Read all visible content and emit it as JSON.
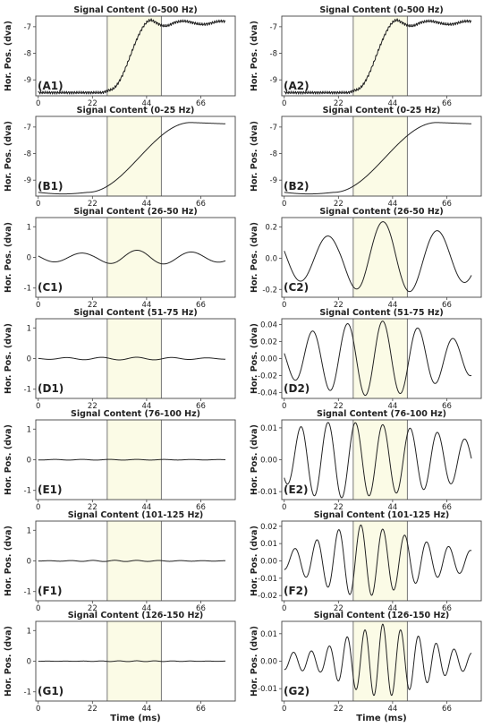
{
  "figure": {
    "x_label": "Time (ms)",
    "y_label": "Hor. Pos. (dva)",
    "shade_color": "#fbfbe6",
    "line_color": "#222222",
    "shaded_interval_ms": [
      28,
      50
    ]
  },
  "chart_data": [
    {
      "id": "A1",
      "type": "line",
      "title": "Signal Content (0-500 Hz)",
      "panel_label": "(A1)",
      "signal": "full",
      "ylim": [
        -9.6,
        -6.6
      ],
      "yticks": [
        -9,
        -8,
        -7
      ],
      "ytick_labels": [
        "-9",
        "-8",
        "-7"
      ],
      "xlim": [
        -1,
        80
      ],
      "xticks": [
        0,
        22,
        44,
        66
      ],
      "xtick_labels": [
        "0",
        "22",
        "44",
        "66"
      ],
      "x_axis_label": ""
    },
    {
      "id": "A2",
      "type": "line",
      "title": "Signal Content (0-500 Hz)",
      "panel_label": "(A2)",
      "signal": "full",
      "ylim": [
        -9.6,
        -6.6
      ],
      "yticks": [
        -9,
        -8,
        -7
      ],
      "ytick_labels": [
        "-9",
        "-8",
        "-7"
      ],
      "xlim": [
        -1,
        80
      ],
      "xticks": [
        0,
        22,
        44,
        66
      ],
      "xtick_labels": [
        "0",
        "22",
        "44",
        "66"
      ],
      "x_axis_label": ""
    },
    {
      "id": "B1",
      "type": "line",
      "title": "Signal Content (0-25 Hz)",
      "panel_label": "(B1)",
      "signal": "smooth",
      "ylim": [
        -9.6,
        -6.6
      ],
      "yticks": [
        -9,
        -8,
        -7
      ],
      "ytick_labels": [
        "-9",
        "-8",
        "-7"
      ],
      "xlim": [
        -1,
        80
      ],
      "xticks": [
        0,
        22,
        44,
        66
      ],
      "xtick_labels": [
        "0",
        "22",
        "44",
        "66"
      ],
      "x_axis_label": ""
    },
    {
      "id": "B2",
      "type": "line",
      "title": "Signal Content (0-25 Hz)",
      "panel_label": "(B2)",
      "signal": "smooth",
      "ylim": [
        -9.6,
        -6.6
      ],
      "yticks": [
        -9,
        -8,
        -7
      ],
      "ytick_labels": [
        "-9",
        "-8",
        "-7"
      ],
      "xlim": [
        -1,
        80
      ],
      "xticks": [
        0,
        22,
        44,
        66
      ],
      "xtick_labels": [
        "0",
        "22",
        "44",
        "66"
      ],
      "x_axis_label": ""
    },
    {
      "id": "C1",
      "type": "line",
      "title": "Signal Content (26-50 Hz)",
      "panel_label": "(C1)",
      "signal": "wave",
      "freq_khz": 0.045,
      "envelope": [
        [
          0,
          0.15
        ],
        [
          22,
          0.14
        ],
        [
          32,
          0.22
        ],
        [
          44,
          0.24
        ],
        [
          60,
          0.18
        ],
        [
          76,
          0.15
        ]
      ],
      "ylim": [
        -1.3,
        1.3
      ],
      "yticks": [
        -1,
        0,
        1
      ],
      "ytick_labels": [
        "-1",
        "0",
        "1"
      ],
      "xlim": [
        -1,
        80
      ],
      "xticks": [
        0,
        22,
        44,
        66
      ],
      "xtick_labels": [
        "0",
        "22",
        "44",
        "66"
      ],
      "x_axis_label": ""
    },
    {
      "id": "C2",
      "type": "line",
      "title": "Signal Content (26-50 Hz)",
      "panel_label": "(C2)",
      "signal": "wave",
      "freq_khz": 0.045,
      "envelope": [
        [
          0,
          0.15
        ],
        [
          22,
          0.14
        ],
        [
          32,
          0.22
        ],
        [
          44,
          0.24
        ],
        [
          60,
          0.18
        ],
        [
          76,
          0.15
        ]
      ],
      "ylim": [
        -0.25,
        0.26
      ],
      "yticks": [
        -0.2,
        0,
        0.2
      ],
      "ytick_labels": [
        "-0.2",
        "0.0",
        "0.2"
      ],
      "xlim": [
        -1,
        80
      ],
      "xticks": [
        0,
        22,
        44,
        66
      ],
      "xtick_labels": [
        "0",
        "22",
        "44",
        "66"
      ],
      "x_axis_label": ""
    },
    {
      "id": "D1",
      "type": "line",
      "title": "Signal Content (51-75 Hz)",
      "panel_label": "(D1)",
      "signal": "wave",
      "freq_khz": 0.07,
      "envelope": [
        [
          0,
          0.02
        ],
        [
          8,
          0.03
        ],
        [
          22,
          0.04
        ],
        [
          38,
          0.045
        ],
        [
          50,
          0.04
        ],
        [
          66,
          0.025
        ],
        [
          76,
          0.02
        ]
      ],
      "ylim": [
        -1.3,
        1.3
      ],
      "yticks": [
        -1,
        0,
        1
      ],
      "ytick_labels": [
        "-1",
        "0",
        "1"
      ],
      "xlim": [
        -1,
        80
      ],
      "xticks": [
        0,
        22,
        44,
        66
      ],
      "xtick_labels": [
        "0",
        "22",
        "44",
        "66"
      ],
      "x_axis_label": ""
    },
    {
      "id": "D2",
      "type": "line",
      "title": "Signal Content (51-75 Hz)",
      "panel_label": "(D2)",
      "signal": "wave",
      "freq_khz": 0.07,
      "envelope": [
        [
          0,
          0.02
        ],
        [
          8,
          0.03
        ],
        [
          22,
          0.04
        ],
        [
          38,
          0.045
        ],
        [
          50,
          0.04
        ],
        [
          66,
          0.025
        ],
        [
          76,
          0.02
        ]
      ],
      "ylim": [
        -0.047,
        0.047
      ],
      "yticks": [
        -0.04,
        -0.02,
        0,
        0.02,
        0.04
      ],
      "ytick_labels": [
        "-0.04",
        "-0.02",
        "0.00",
        "0.02",
        "0.04"
      ],
      "xlim": [
        -1,
        80
      ],
      "xticks": [
        0,
        22,
        44,
        66
      ],
      "xtick_labels": [
        "0",
        "22",
        "44",
        "66"
      ],
      "x_axis_label": ""
    },
    {
      "id": "E1",
      "type": "line",
      "title": "Signal Content (76-100 Hz)",
      "panel_label": "(E1)",
      "signal": "wave",
      "freq_khz": 0.09,
      "envelope": [
        [
          0,
          0.007
        ],
        [
          8,
          0.011
        ],
        [
          22,
          0.012
        ],
        [
          40,
          0.011
        ],
        [
          60,
          0.009
        ],
        [
          76,
          0.006
        ]
      ],
      "ylim": [
        -1.3,
        1.3
      ],
      "yticks": [
        -1,
        0,
        1
      ],
      "ytick_labels": [
        "-1",
        "0",
        "1"
      ],
      "xlim": [
        -1,
        80
      ],
      "xticks": [
        0,
        22,
        44,
        66
      ],
      "xtick_labels": [
        "0",
        "22",
        "44",
        "66"
      ],
      "x_axis_label": ""
    },
    {
      "id": "E2",
      "type": "line",
      "title": "Signal Content (76-100 Hz)",
      "panel_label": "(E2)",
      "signal": "wave",
      "freq_khz": 0.09,
      "envelope": [
        [
          0,
          0.007
        ],
        [
          8,
          0.011
        ],
        [
          22,
          0.012
        ],
        [
          40,
          0.011
        ],
        [
          60,
          0.009
        ],
        [
          76,
          0.006
        ]
      ],
      "ylim": [
        -0.0125,
        0.0125
      ],
      "yticks": [
        -0.01,
        0,
        0.01
      ],
      "ytick_labels": [
        "-0.01",
        "0.00",
        "0.01"
      ],
      "xlim": [
        -1,
        80
      ],
      "xticks": [
        0,
        22,
        44,
        66
      ],
      "xtick_labels": [
        "0",
        "22",
        "44",
        "66"
      ],
      "x_axis_label": ""
    },
    {
      "id": "F1",
      "type": "line",
      "title": "Signal Content (101-125 Hz)",
      "panel_label": "(F1)",
      "signal": "wave",
      "freq_khz": 0.112,
      "envelope": [
        [
          0,
          0.005
        ],
        [
          10,
          0.01
        ],
        [
          22,
          0.018
        ],
        [
          32,
          0.021
        ],
        [
          44,
          0.017
        ],
        [
          60,
          0.01
        ],
        [
          76,
          0.006
        ]
      ],
      "ylim": [
        -1.3,
        1.3
      ],
      "yticks": [
        -1,
        0,
        1
      ],
      "ytick_labels": [
        "-1",
        "0",
        "1"
      ],
      "xlim": [
        -1,
        80
      ],
      "xticks": [
        0,
        22,
        44,
        66
      ],
      "xtick_labels": [
        "0",
        "22",
        "44",
        "66"
      ],
      "x_axis_label": ""
    },
    {
      "id": "F2",
      "type": "line",
      "title": "Signal Content (101-125 Hz)",
      "panel_label": "(F2)",
      "signal": "wave",
      "freq_khz": 0.112,
      "envelope": [
        [
          0,
          0.005
        ],
        [
          10,
          0.01
        ],
        [
          22,
          0.018
        ],
        [
          32,
          0.021
        ],
        [
          44,
          0.017
        ],
        [
          60,
          0.01
        ],
        [
          76,
          0.006
        ]
      ],
      "ylim": [
        -0.023,
        0.023
      ],
      "yticks": [
        -0.02,
        -0.01,
        0,
        0.01,
        0.02
      ],
      "ytick_labels": [
        "-0.02",
        "-0.01",
        "0.00",
        "0.01",
        "0.02"
      ],
      "xlim": [
        -1,
        80
      ],
      "xticks": [
        0,
        22,
        44,
        66
      ],
      "xtick_labels": [
        "0",
        "22",
        "44",
        "66"
      ],
      "x_axis_label": ""
    },
    {
      "id": "G1",
      "type": "line",
      "title": "Signal Content (126-150 Hz)",
      "panel_label": "(G1)",
      "signal": "wave",
      "freq_khz": 0.138,
      "envelope": [
        [
          0,
          0.003
        ],
        [
          15,
          0.004
        ],
        [
          28,
          0.01
        ],
        [
          40,
          0.0135
        ],
        [
          52,
          0.01
        ],
        [
          66,
          0.005
        ],
        [
          76,
          0.003
        ]
      ],
      "ylim": [
        -1.3,
        1.3
      ],
      "yticks": [
        -1,
        0,
        1
      ],
      "ytick_labels": [
        "-1",
        "0",
        "1"
      ],
      "xlim": [
        -1,
        80
      ],
      "xticks": [
        0,
        22,
        44,
        66
      ],
      "xtick_labels": [
        "0",
        "22",
        "44",
        "66"
      ],
      "x_axis_label": "Time (ms)"
    },
    {
      "id": "G2",
      "type": "line",
      "title": "Signal Content (126-150 Hz)",
      "panel_label": "(G2)",
      "signal": "wave",
      "freq_khz": 0.138,
      "envelope": [
        [
          0,
          0.003
        ],
        [
          15,
          0.004
        ],
        [
          28,
          0.01
        ],
        [
          40,
          0.0135
        ],
        [
          52,
          0.01
        ],
        [
          66,
          0.005
        ],
        [
          76,
          0.003
        ]
      ],
      "ylim": [
        -0.0145,
        0.0145
      ],
      "yticks": [
        -0.01,
        0,
        0.01
      ],
      "ytick_labels": [
        "-0.01",
        "0.00",
        "0.01"
      ],
      "xlim": [
        -1,
        80
      ],
      "xticks": [
        0,
        22,
        44,
        66
      ],
      "xtick_labels": [
        "0",
        "22",
        "44",
        "66"
      ],
      "x_axis_label": "Time (ms)"
    }
  ]
}
